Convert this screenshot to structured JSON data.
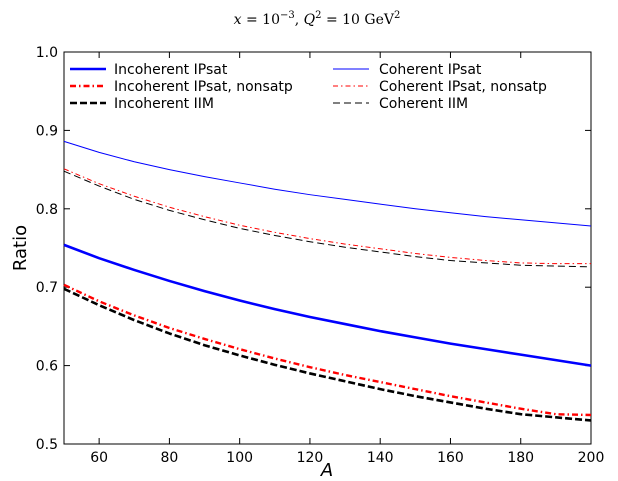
{
  "chart_data": {
    "type": "line",
    "title": "x = 10⁻³, Q² = 10 GeV²",
    "xlabel": "A",
    "ylabel": "Ratio",
    "xlim": [
      50,
      200
    ],
    "ylim": [
      0.5,
      1.0
    ],
    "x_ticks": [
      "60",
      "80",
      "100",
      "120",
      "140",
      "160",
      "180",
      "200"
    ],
    "y_ticks": [
      "0.5",
      "0.6",
      "0.7",
      "0.8",
      "0.9",
      "1.0"
    ],
    "grid": false,
    "legend_position": "top",
    "x": [
      50,
      60,
      70,
      80,
      90,
      100,
      110,
      120,
      130,
      140,
      150,
      160,
      170,
      180,
      190,
      200
    ],
    "series": [
      {
        "name": "Incoherent IPsat",
        "color": "#0000ff",
        "line_style": "solid-thick",
        "values": [
          0.754,
          0.737,
          0.722,
          0.708,
          0.695,
          0.683,
          0.672,
          0.662,
          0.653,
          0.644,
          0.636,
          0.628,
          0.621,
          0.614,
          0.607,
          0.6
        ]
      },
      {
        "name": "Incoherent IPsat, nonsatp",
        "color": "#ff0000",
        "line_style": "dashdot-thick",
        "values": [
          0.703,
          0.682,
          0.664,
          0.648,
          0.634,
          0.621,
          0.609,
          0.598,
          0.588,
          0.579,
          0.57,
          0.561,
          0.553,
          0.545,
          0.538,
          0.537
        ]
      },
      {
        "name": "Incoherent IIM",
        "color": "#000000",
        "line_style": "dashed-thick",
        "values": [
          0.698,
          0.677,
          0.658,
          0.641,
          0.626,
          0.613,
          0.601,
          0.59,
          0.58,
          0.57,
          0.561,
          0.553,
          0.545,
          0.538,
          0.534,
          0.53
        ]
      },
      {
        "name": "Coherent IPsat",
        "color": "#0000ff",
        "line_style": "solid-thin",
        "values": [
          0.886,
          0.872,
          0.86,
          0.85,
          0.841,
          0.833,
          0.825,
          0.818,
          0.812,
          0.806,
          0.8,
          0.795,
          0.79,
          0.786,
          0.782,
          0.778
        ]
      },
      {
        "name": "Coherent IPsat, nonsatp",
        "color": "#ff0000",
        "line_style": "dashdot-thin",
        "values": [
          0.851,
          0.832,
          0.816,
          0.802,
          0.79,
          0.779,
          0.77,
          0.762,
          0.755,
          0.749,
          0.743,
          0.738,
          0.734,
          0.731,
          0.73,
          0.73
        ]
      },
      {
        "name": "Coherent IIM",
        "color": "#000000",
        "line_style": "dashed-thin",
        "values": [
          0.848,
          0.829,
          0.812,
          0.798,
          0.786,
          0.775,
          0.766,
          0.758,
          0.751,
          0.745,
          0.739,
          0.734,
          0.731,
          0.728,
          0.727,
          0.726
        ]
      }
    ]
  }
}
